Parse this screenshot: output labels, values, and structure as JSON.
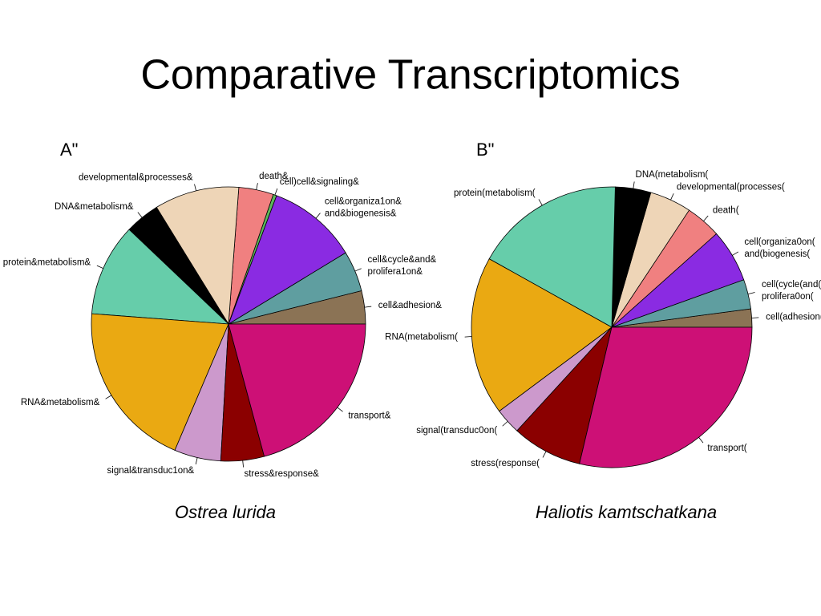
{
  "title": "Comparative Transcriptomics",
  "chart_data": [
    {
      "type": "pie",
      "panel": "A\"",
      "caption": "Ostrea lurida",
      "categories": [
        "cell&adhesion&",
        [
          "cell&cycle&and&",
          "prolifera1on&"
        ],
        [
          "cell&organiza1on&",
          "and&biogenesis&"
        ],
        "cell)cell&signaling&",
        "death&",
        "developmental&processes&",
        "DNA&metabolism&",
        "protein&metabolism&",
        "RNA&metabolism&",
        "signal&transduc1on&",
        "stress&response&",
        "transport&"
      ],
      "values": [
        3.9,
        4.8,
        10.6,
        0.4,
        4.1,
        10.0,
        4.1,
        10.9,
        19.8,
        5.5,
        5.1,
        20.8
      ],
      "colors": [
        "#8b7355",
        "#5f9ea0",
        "#8a2be2",
        "#5cb85c",
        "#f08080",
        "#eed5b7",
        "#000000",
        "#66cdaa",
        "#eaa912",
        "#cc99cc",
        "#8b0000",
        "#cd1076"
      ]
    },
    {
      "type": "pie",
      "panel": "B\"",
      "caption": "Haliotis kamtschatkana",
      "categories": [
        "cell(adhesion(",
        [
          "cell(cycle(and(",
          "prolifera0on("
        ],
        [
          "cell(organiza0on(",
          "and(biogenesis("
        ],
        "death(",
        "developmental(processes(",
        "DNA(metabolism(",
        "protein(metabolism(",
        "RNA(metabolism(",
        "signal(transduc0on(",
        "stress(response(",
        "transport("
      ],
      "values": [
        2.1,
        3.4,
        6.1,
        4.1,
        4.8,
        4.1,
        17.3,
        18.3,
        3.0,
        8.1,
        28.7
      ],
      "colors": [
        "#8b7355",
        "#5f9ea0",
        "#8a2be2",
        "#f08080",
        "#eed5b7",
        "#000000",
        "#66cdaa",
        "#eaa912",
        "#cc99cc",
        "#8b0000",
        "#cd1076"
      ]
    }
  ]
}
